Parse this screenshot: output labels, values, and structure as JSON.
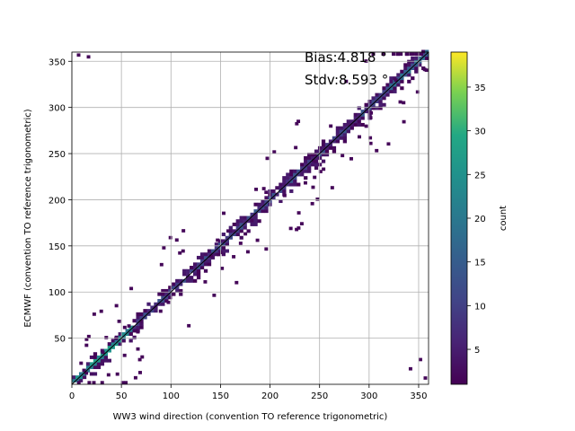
{
  "chart_data": {
    "type": "heatmap",
    "title": "",
    "xlabel": "WW3 wind direction (convention TO reference trigonometric)",
    "ylabel": "ECMWF (convention TO reference trigonometric)",
    "xlim": [
      0,
      360
    ],
    "ylim": [
      0,
      360
    ],
    "x_ticks": [
      "0",
      "50",
      "100",
      "150",
      "200",
      "250",
      "300",
      "350"
    ],
    "y_ticks": [
      "50",
      "100",
      "150",
      "200",
      "250",
      "300",
      "350"
    ],
    "grid": true,
    "bin_size_deg": 3.6,
    "annotations": {
      "bias": "Bias:4.818 °",
      "stdv": "Stdv:8.593 °"
    },
    "colorbar": {
      "label": "count",
      "ticks": [
        "5",
        "10",
        "15",
        "20",
        "25",
        "30",
        "35"
      ],
      "range": [
        1,
        39
      ],
      "colormap": "viridis"
    },
    "one_to_one_line": true,
    "diagonal_band_halfwidth_deg": 12,
    "scatter_outliers_count": 120,
    "wraparound_bins": [
      {
        "x": 5,
        "y": 355
      },
      {
        "x": 15,
        "y": 353
      },
      {
        "x": 355,
        "y": 5
      },
      {
        "x": 340,
        "y": 15
      },
      {
        "x": 350,
        "y": 25
      }
    ]
  }
}
